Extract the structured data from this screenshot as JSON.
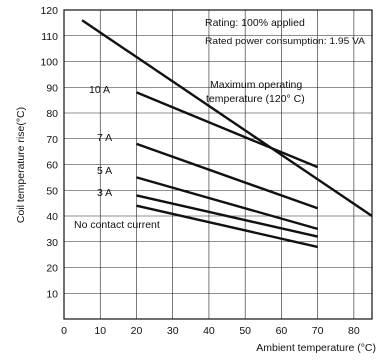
{
  "chart_data": {
    "type": "line",
    "xlabel": "Ambient temperature (°C)",
    "ylabel": "Coil temperature rise(°C)",
    "xlim": [
      0,
      85
    ],
    "ylim": [
      0,
      120
    ],
    "x_ticks": [
      0,
      10,
      20,
      30,
      40,
      50,
      60,
      70,
      80
    ],
    "x_tick_labels": [
      "0",
      "10",
      "20",
      "30",
      "40",
      "50",
      "60",
      "70",
      "80"
    ],
    "y_ticks": [
      10,
      20,
      30,
      40,
      50,
      60,
      70,
      80,
      90,
      100,
      110,
      120
    ],
    "grid": true,
    "annotations": {
      "rating": "Rating: 100% applied",
      "power": "Rated power consumption: 1.95 VA",
      "max_temp_line1": "Maximum operating",
      "max_temp_line2": "temperature (120° C)"
    },
    "series": [
      {
        "name": "10 A",
        "x": [
          20,
          70
        ],
        "y": [
          88,
          59
        ]
      },
      {
        "name": "7 A",
        "x": [
          20,
          70
        ],
        "y": [
          68,
          43
        ]
      },
      {
        "name": "5 A",
        "x": [
          20,
          70
        ],
        "y": [
          55,
          35
        ]
      },
      {
        "name": "3 A",
        "x": [
          20,
          70
        ],
        "y": [
          48,
          32
        ]
      },
      {
        "name": "No contact current",
        "x": [
          20,
          70
        ],
        "y": [
          44,
          28
        ]
      },
      {
        "name": "Maximum operating temperature (120° C)",
        "x": [
          5,
          85
        ],
        "y": [
          116,
          40
        ]
      }
    ]
  }
}
